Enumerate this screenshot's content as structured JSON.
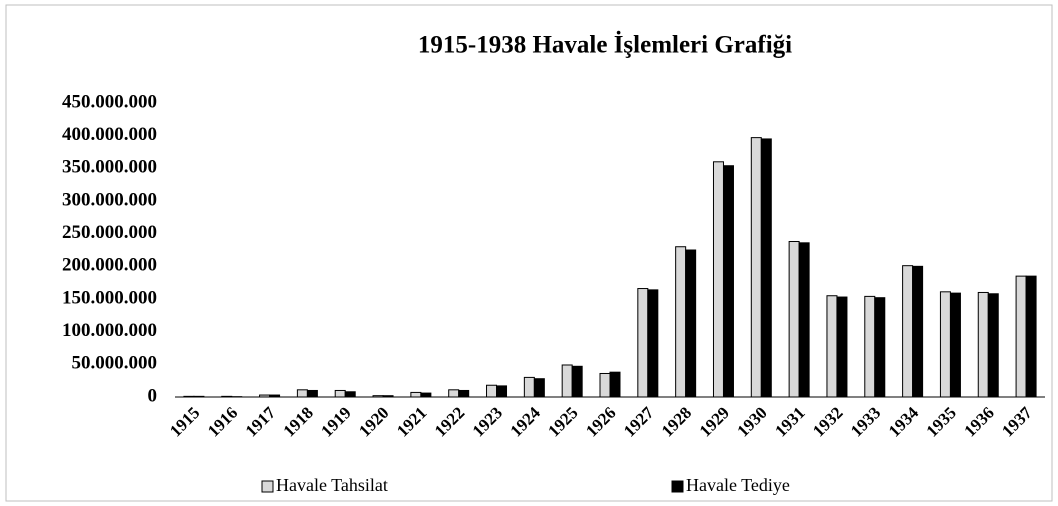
{
  "chart_data": {
    "type": "bar",
    "title": "1915-1938 Havale İşlemleri Grafiği",
    "categories": [
      "1915",
      "1916",
      "1917",
      "1918",
      "1919",
      "1920",
      "1921",
      "1922",
      "1923",
      "1924",
      "1925",
      "1926",
      "1927",
      "1928",
      "1929",
      "1930",
      "1931",
      "1932",
      "1933",
      "1934",
      "1935",
      "1936",
      "1937"
    ],
    "series": [
      {
        "name": "Havale Tahsilat",
        "color": "#d9d9d9",
        "values": [
          1000000,
          1000000,
          3000000,
          11000000,
          10000000,
          2000000,
          7000000,
          11000000,
          18000000,
          30000000,
          49000000,
          36000000,
          166000000,
          230000000,
          360000000,
          397000000,
          238000000,
          155000000,
          154000000,
          201000000,
          161000000,
          160000000,
          185000000
        ]
      },
      {
        "name": "Havale Tediye",
        "color": "#000000",
        "values": [
          1000000,
          500000,
          3000000,
          10000000,
          8000000,
          2000000,
          6000000,
          10000000,
          17000000,
          28000000,
          47000000,
          38000000,
          164000000,
          225000000,
          354000000,
          395000000,
          236000000,
          153000000,
          152000000,
          200000000,
          159000000,
          158000000,
          185000000
        ]
      }
    ],
    "ylim": [
      0,
      450000000
    ],
    "yticks": [
      0,
      {
        "value": 50000000,
        "label": "50.000.000"
      },
      {
        "value": 100000000,
        "label": "100.000.000"
      },
      {
        "value": 150000000,
        "label": "150.000.000"
      },
      {
        "value": 200000000,
        "label": "200.000.000"
      },
      {
        "value": 250000000,
        "label": "250.000.000"
      },
      {
        "value": 300000000,
        "label": "300.000.000"
      },
      {
        "value": 350000000,
        "label": "350.000.000"
      },
      {
        "value": 400000000,
        "label": "400.000.000"
      },
      {
        "value": 450000000,
        "label": "450.000.000"
      }
    ],
    "grid": false,
    "legend": "bottom"
  }
}
